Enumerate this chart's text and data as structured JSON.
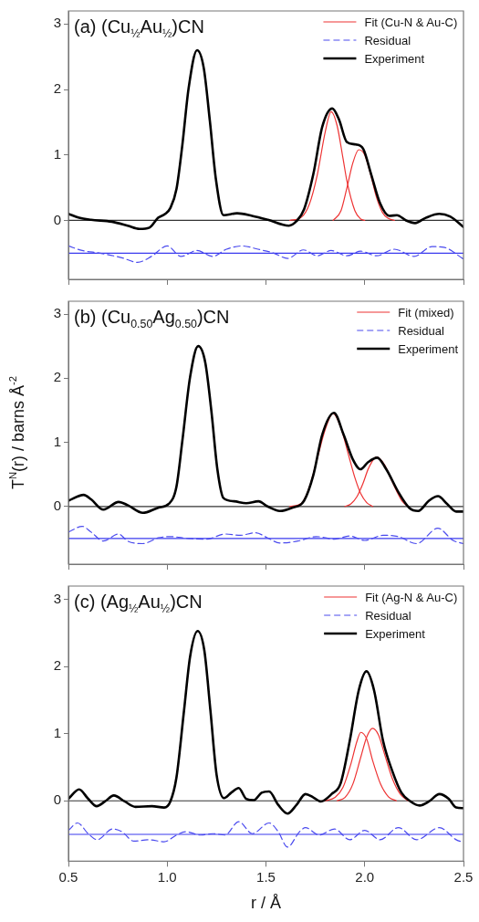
{
  "chart_data": [
    {
      "type": "line",
      "title": "(a) (Cu$_{½}$Au$_{½}$)CN",
      "xlim": [
        0.5,
        2.5
      ],
      "xticks": [
        0.5,
        1,
        1.5,
        2,
        2.5
      ],
      "ylim": [
        -0.9,
        3.2
      ],
      "yticks": [
        0,
        1,
        2,
        3
      ],
      "tick_labels": "y",
      "legend": "top right",
      "marker": "none",
      "ref_lines": [
        {
          "axis": "y",
          "value": 0,
          "color": "#333333"
        },
        {
          "axis": "y",
          "value": -0.5,
          "color": "#3a3aee"
        }
      ],
      "series": [
        {
          "name": "Fit (Cu-N & Au-C)",
          "color": "#ee3333",
          "x": [
            1.62,
            1.68,
            1.72,
            1.76,
            1.8,
            1.83,
            1.86,
            1.89,
            1.91,
            1.95,
            1.98,
            2.0
          ],
          "values": [
            0,
            0.05,
            0.25,
            0.7,
            1.35,
            1.66,
            1.45,
            0.95,
            0.6,
            0.15,
            0.02,
            0
          ]
        },
        {
          "color": "#ee3333",
          "x": [
            1.84,
            1.88,
            1.91,
            1.94,
            1.97,
            2.0,
            2.03,
            2.06,
            2.09,
            2.12,
            2.15
          ],
          "values": [
            0,
            0.15,
            0.5,
            0.88,
            1.08,
            1.0,
            0.7,
            0.35,
            0.12,
            0.03,
            0
          ]
        },
        {
          "name": "Residual",
          "color": "#4a4aee",
          "line_style": "dashed",
          "x": [
            0.5,
            0.57,
            0.66,
            0.77,
            0.85,
            0.92,
            1.0,
            1.07,
            1.15,
            1.23,
            1.3,
            1.38,
            1.46,
            1.54,
            1.61,
            1.69,
            1.76,
            1.83,
            1.91,
            1.98,
            2.06,
            2.15,
            2.25,
            2.34,
            2.4,
            2.5
          ],
          "values": [
            -0.39,
            -0.46,
            -0.5,
            -0.57,
            -0.64,
            -0.55,
            -0.39,
            -0.55,
            -0.46,
            -0.55,
            -0.44,
            -0.39,
            -0.44,
            -0.5,
            -0.58,
            -0.45,
            -0.54,
            -0.46,
            -0.54,
            -0.47,
            -0.54,
            -0.44,
            -0.55,
            -0.4,
            -0.41,
            -0.59
          ]
        },
        {
          "name": "Experiment",
          "color": "#000000",
          "x": [
            0.5,
            0.554,
            0.615,
            0.72,
            0.8,
            0.86,
            0.91,
            0.954,
            0.99,
            1.016,
            1.047,
            1.077,
            1.108,
            1.151,
            1.185,
            1.216,
            1.247,
            1.285,
            1.354,
            1.43,
            1.51,
            1.616,
            1.655,
            1.693,
            1.74,
            1.785,
            1.836,
            1.87,
            1.909,
            1.955,
            1.993,
            2.032,
            2.078,
            2.124,
            2.163,
            2.209,
            2.255,
            2.309,
            2.378,
            2.432,
            2.5
          ],
          "values": [
            0.1,
            0.04,
            0.01,
            -0.02,
            -0.08,
            -0.13,
            -0.11,
            0.04,
            0.1,
            0.19,
            0.48,
            1.16,
            2.01,
            2.6,
            2.33,
            1.52,
            0.62,
            0.08,
            0.11,
            0.07,
            0.01,
            -0.08,
            -0.01,
            0.17,
            0.71,
            1.43,
            1.71,
            1.54,
            1.2,
            1.16,
            1.09,
            0.71,
            0.26,
            0.07,
            0.08,
            0,
            -0.04,
            0.04,
            0.1,
            0.06,
            -0.1
          ]
        }
      ]
    },
    {
      "type": "line",
      "title": "(b) (Cu$_{0.50}$Ag$_{0.50}$)CN",
      "ylabel": "T$^{N}$(r) / barns Å$^{-2}$",
      "xlim": [
        0.5,
        2.5
      ],
      "xticks": [
        0.5,
        1,
        1.5,
        2,
        2.5
      ],
      "ylim": [
        -0.9,
        3.2
      ],
      "yticks": [
        0,
        1,
        2,
        3
      ],
      "tick_labels": "y",
      "legend": "top right",
      "marker": "none",
      "ref_lines": [
        {
          "axis": "y",
          "value": 0,
          "color": "#333333"
        },
        {
          "axis": "y",
          "value": -0.5,
          "color": "#3a3aee"
        }
      ],
      "series": [
        {
          "name": "Fit (mixed)",
          "color": "#ee3333",
          "x": [
            1.62,
            1.68,
            1.72,
            1.76,
            1.8,
            1.84,
            1.88,
            1.92,
            1.95,
            1.98,
            2.01,
            2.04
          ],
          "values": [
            0,
            0.05,
            0.3,
            0.75,
            1.2,
            1.45,
            1.22,
            0.78,
            0.45,
            0.2,
            0.06,
            0
          ]
        },
        {
          "color": "#ee3333",
          "x": [
            1.9,
            1.93,
            1.96,
            1.99,
            2.02,
            2.06,
            2.1,
            2.13,
            2.16,
            2.19,
            2.22
          ],
          "values": [
            0,
            0.04,
            0.15,
            0.35,
            0.6,
            0.77,
            0.65,
            0.45,
            0.25,
            0.08,
            0
          ]
        },
        {
          "name": "Residual",
          "color": "#4a4aee",
          "line_style": "dashed",
          "x": [
            0.5,
            0.57,
            0.615,
            0.677,
            0.754,
            0.8,
            0.877,
            0.954,
            1.016,
            1.108,
            1.2,
            1.293,
            1.37,
            1.447,
            1.508,
            1.57,
            1.662,
            1.755,
            1.847,
            1.924,
            2.0,
            2.093,
            2.17,
            2.263,
            2.37,
            2.447,
            2.5
          ],
          "values": [
            -0.4,
            -0.31,
            -0.4,
            -0.54,
            -0.43,
            -0.54,
            -0.58,
            -0.49,
            -0.47,
            -0.5,
            -0.51,
            -0.43,
            -0.45,
            -0.41,
            -0.49,
            -0.57,
            -0.54,
            -0.47,
            -0.51,
            -0.46,
            -0.53,
            -0.45,
            -0.47,
            -0.58,
            -0.34,
            -0.53,
            -0.58
          ]
        },
        {
          "name": "Experiment",
          "color": "#000000",
          "x": [
            0.5,
            0.577,
            0.615,
            0.677,
            0.754,
            0.8,
            0.877,
            0.954,
            1.008,
            1.047,
            1.077,
            1.116,
            1.157,
            1.193,
            1.224,
            1.254,
            1.285,
            1.339,
            1.4,
            1.462,
            1.508,
            1.57,
            1.632,
            1.693,
            1.74,
            1.785,
            1.844,
            1.893,
            1.939,
            1.978,
            2.017,
            2.063,
            2.109,
            2.171,
            2.225,
            2.271,
            2.325,
            2.371,
            2.417,
            2.463,
            2.5
          ],
          "values": [
            0.09,
            0.18,
            0.11,
            -0.05,
            0.07,
            0.02,
            -0.1,
            -0.02,
            0.04,
            0.31,
            1.03,
            2.02,
            2.5,
            2.24,
            1.48,
            0.58,
            0.13,
            0.08,
            0.05,
            0.08,
            0,
            -0.07,
            -0.02,
            0.09,
            0.49,
            1.12,
            1.46,
            1.12,
            0.74,
            0.58,
            0.69,
            0.76,
            0.58,
            0.22,
            -0.02,
            -0.07,
            0.09,
            0.16,
            0.04,
            -0.08,
            -0.08
          ]
        }
      ]
    },
    {
      "type": "line",
      "title": "(c) (Ag$_{½}$Au$_{½}$)CN",
      "xlabel": "r / Å",
      "xlim": [
        0.5,
        2.5
      ],
      "xticks": [
        0.5,
        {
          "value": 1,
          "label": "1.0"
        },
        1.5,
        {
          "value": 2,
          "label": "2.0"
        },
        2.5
      ],
      "ylim": [
        -0.9,
        3.2
      ],
      "yticks": [
        0,
        1,
        2,
        3
      ],
      "legend": "top right",
      "marker": "none",
      "ref_lines": [
        {
          "axis": "y",
          "value": 0,
          "color": "#333333"
        },
        {
          "axis": "y",
          "value": -0.5,
          "color": "#3a3aee"
        }
      ],
      "series": [
        {
          "name": "Fit (Ag-N & Au-C)",
          "color": "#ee3333",
          "x": [
            1.8,
            1.85,
            1.89,
            1.93,
            1.96,
            1.98,
            2.01,
            2.04,
            2.08,
            2.12,
            2.16
          ],
          "values": [
            0,
            0.05,
            0.2,
            0.55,
            0.88,
            1.02,
            0.92,
            0.6,
            0.25,
            0.06,
            0
          ]
        },
        {
          "color": "#ee3333",
          "x": [
            1.86,
            1.9,
            1.94,
            1.98,
            2.01,
            2.04,
            2.07,
            2.1,
            2.14,
            2.18,
            2.22
          ],
          "values": [
            0,
            0.05,
            0.25,
            0.65,
            0.95,
            1.08,
            0.98,
            0.7,
            0.33,
            0.1,
            0
          ]
        },
        {
          "name": "Residual",
          "color": "#4a4aee",
          "line_style": "dashed",
          "x": [
            0.5,
            0.546,
            0.6,
            0.646,
            0.723,
            0.77,
            0.831,
            0.908,
            0.985,
            1.047,
            1.093,
            1.17,
            1.231,
            1.293,
            1.362,
            1.431,
            1.516,
            1.562,
            1.609,
            1.67,
            1.7,
            1.77,
            1.847,
            1.924,
            2.0,
            2.078,
            2.17,
            2.263,
            2.378,
            2.463,
            2.5
          ],
          "values": [
            -0.44,
            -0.33,
            -0.49,
            -0.58,
            -0.42,
            -0.46,
            -0.6,
            -0.58,
            -0.61,
            -0.51,
            -0.46,
            -0.51,
            -0.49,
            -0.51,
            -0.31,
            -0.49,
            -0.33,
            -0.46,
            -0.69,
            -0.46,
            -0.4,
            -0.51,
            -0.42,
            -0.58,
            -0.44,
            -0.58,
            -0.4,
            -0.58,
            -0.4,
            -0.58,
            -0.62
          ]
        },
        {
          "name": "Experiment",
          "color": "#000000",
          "x": [
            0.5,
            0.554,
            0.6,
            0.643,
            0.685,
            0.73,
            0.785,
            0.839,
            0.923,
            0.985,
            1.016,
            1.047,
            1.085,
            1.116,
            1.154,
            1.188,
            1.219,
            1.25,
            1.288,
            1.324,
            1.362,
            1.4,
            1.439,
            1.478,
            1.516,
            1.562,
            1.609,
            1.655,
            1.7,
            1.74,
            1.778,
            1.832,
            1.878,
            1.924,
            1.97,
            2.009,
            2.047,
            2.093,
            2.14,
            2.186,
            2.232,
            2.278,
            2.325,
            2.378,
            2.425,
            2.463,
            2.5
          ],
          "values": [
            0.03,
            0.17,
            0.03,
            -0.08,
            -0.01,
            0.08,
            -0.01,
            -0.09,
            -0.08,
            -0.1,
            -0.01,
            0.35,
            1.34,
            2.15,
            2.53,
            2.24,
            1.34,
            0.39,
            0.04,
            0.12,
            0.19,
            0.03,
            0.01,
            0.12,
            0.14,
            -0.06,
            -0.19,
            -0.06,
            0.1,
            0.05,
            -0.01,
            0.1,
            0.26,
            0.89,
            1.65,
            1.93,
            1.65,
            0.89,
            0.44,
            0.12,
            -0.01,
            -0.07,
            -0.01,
            0.1,
            0.03,
            -0.1,
            -0.11
          ]
        }
      ]
    }
  ]
}
